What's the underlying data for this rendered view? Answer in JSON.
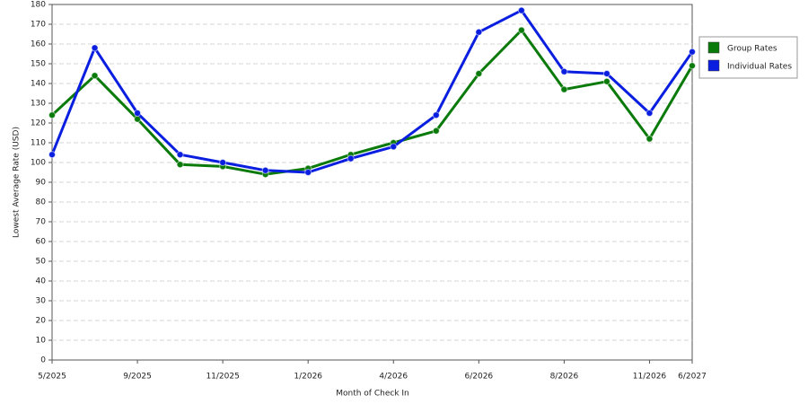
{
  "chart_data": {
    "type": "line",
    "x_label": "Month of Check In",
    "y_label": "Lowest Average Rate (USD)",
    "categories": [
      "5/2025",
      null,
      "9/2025",
      null,
      "11/2025",
      null,
      "1/2026",
      null,
      "4/2026",
      null,
      "6/2026",
      null,
      "8/2026",
      null,
      "11/2026",
      "6/2027"
    ],
    "series": [
      {
        "name": "Group Rates",
        "color": "#0a7a0a",
        "values": [
          124,
          144,
          122,
          99,
          98,
          94,
          97,
          104,
          110,
          116,
          145,
          167,
          137,
          141,
          112,
          149
        ]
      },
      {
        "name": "Individual Rates",
        "color": "#0a1ee0",
        "values": [
          104,
          158,
          125,
          104,
          100,
          96,
          95,
          102,
          108,
          124,
          166,
          177,
          146,
          145,
          125,
          156
        ]
      }
    ],
    "ylim": [
      0,
      180
    ],
    "yticks": [
      0,
      10,
      20,
      30,
      40,
      50,
      60,
      70,
      80,
      90,
      100,
      110,
      120,
      130,
      140,
      150,
      160,
      170,
      180
    ],
    "grid": true,
    "legend": "right"
  }
}
